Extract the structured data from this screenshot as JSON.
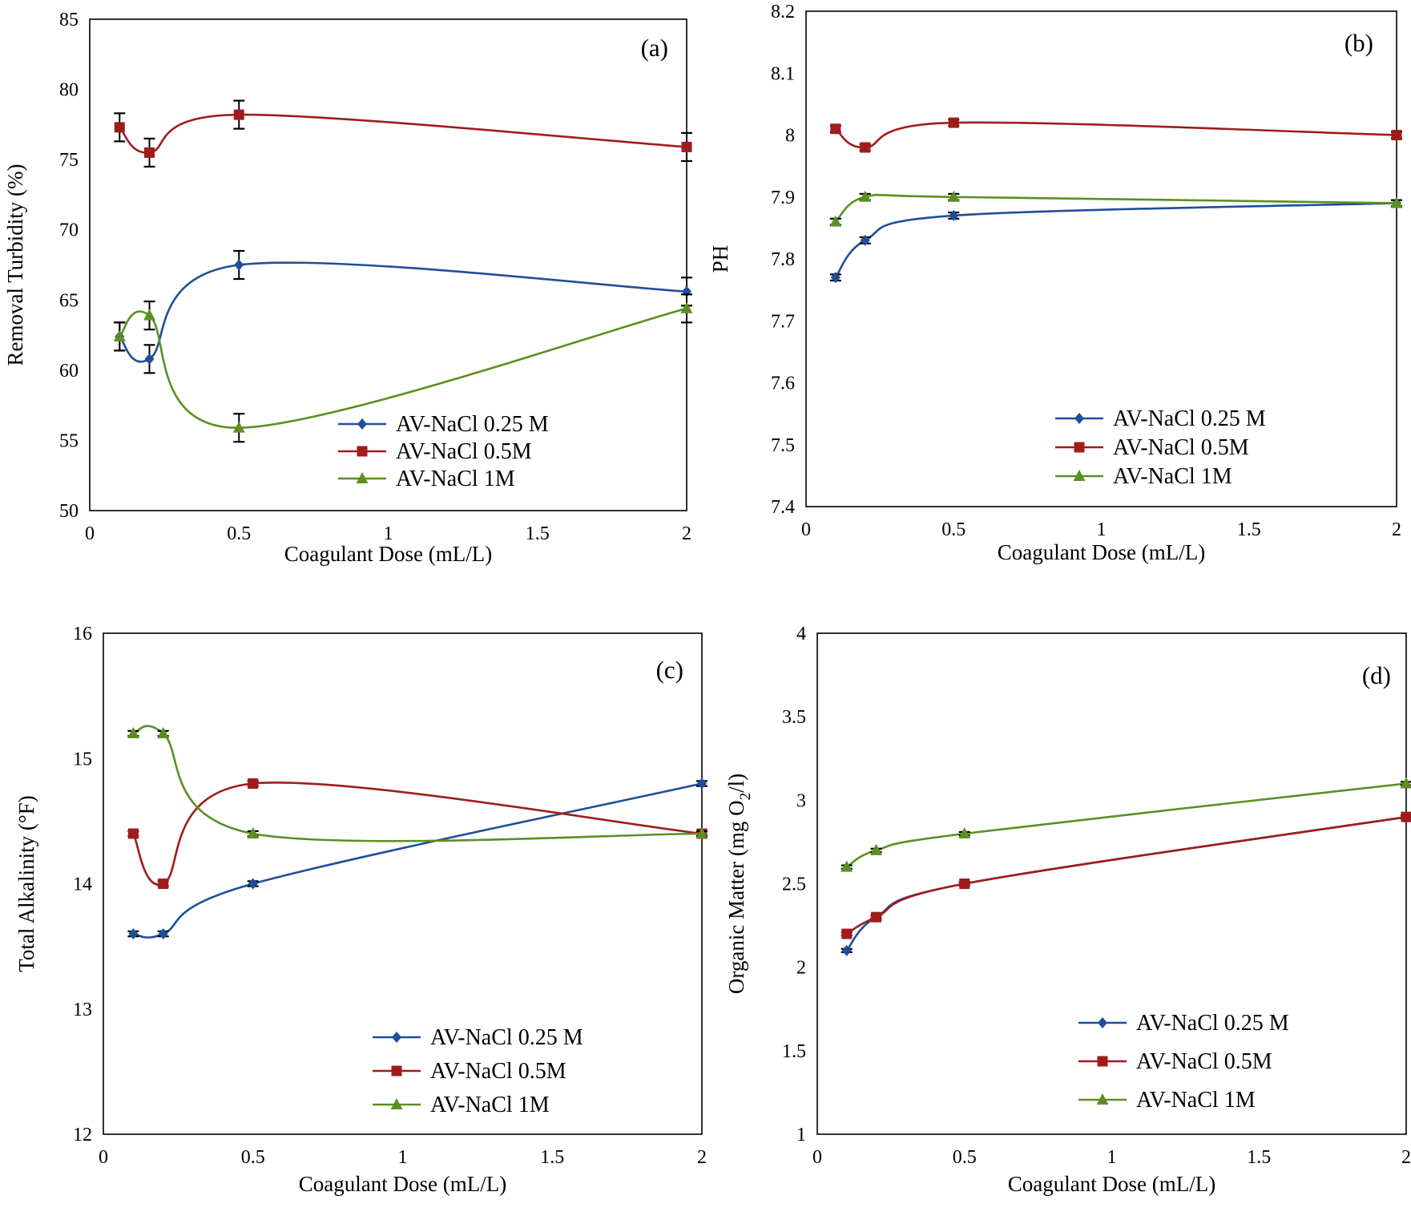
{
  "figure": {
    "x_label": "Coagulant Dose (mL/L)"
  },
  "chart_data": [
    {
      "type": "line",
      "panel": "(a)",
      "xlabel": "Coagulant Dose (mL/L)",
      "ylabel": "Removal Turbidity (%)",
      "xlim": [
        0,
        2
      ],
      "ylim": [
        50,
        85
      ],
      "xticks": [
        0,
        0.5,
        1,
        1.5,
        2
      ],
      "xtick_labels": [
        "0",
        "0.5",
        "1",
        "1.5",
        "2"
      ],
      "yticks": [
        50,
        55,
        60,
        65,
        70,
        75,
        80,
        85
      ],
      "ytick_labels": [
        "50",
        "55",
        "60",
        "65",
        "70",
        "75",
        "80",
        "85"
      ],
      "legend_position": "bottom-right",
      "series": [
        {
          "name": "AV-NaCl 0.25 M",
          "color": "#1f4e9a",
          "marker": "diamond",
          "x": [
            0.1,
            0.2,
            0.5,
            2
          ],
          "y": [
            62.4,
            60.8,
            67.5,
            65.6
          ],
          "error": [
            1,
            1,
            1,
            1
          ]
        },
        {
          "name": "AV-NaCl 0.5M",
          "color": "#a01c1c",
          "marker": "square",
          "x": [
            0.1,
            0.2,
            0.5,
            2
          ],
          "y": [
            77.3,
            75.5,
            78.2,
            75.9
          ],
          "error": [
            1,
            1,
            1,
            1
          ]
        },
        {
          "name": "AV-NaCl 1M",
          "color": "#5b8f22",
          "marker": "triangle",
          "x": [
            0.1,
            0.2,
            0.5,
            2
          ],
          "y": [
            62.4,
            63.9,
            55.9,
            64.4
          ],
          "error": [
            1,
            1,
            1,
            1
          ]
        }
      ]
    },
    {
      "type": "line",
      "panel": "(b)",
      "xlabel": "Coagulant Dose (mL/L)",
      "ylabel": "PH",
      "xlim": [
        0,
        2
      ],
      "ylim": [
        7.4,
        8.2
      ],
      "xticks": [
        0,
        0.5,
        1,
        1.5,
        2
      ],
      "xtick_labels": [
        "0",
        "0.5",
        "1",
        "1.5",
        "2"
      ],
      "yticks": [
        7.4,
        7.5,
        7.6,
        7.7,
        7.8,
        7.9,
        8.0,
        8.1,
        8.2
      ],
      "ytick_labels": [
        "7.4",
        "7.5",
        "7.6",
        "7.7",
        "7.8",
        "7.9",
        "8",
        "8.1",
        "8.2"
      ],
      "legend_position": "bottom-right",
      "series": [
        {
          "name": "AV-NaCl 0.25 M",
          "color": "#1f4e9a",
          "marker": "diamond",
          "x": [
            0.1,
            0.2,
            0.5,
            2
          ],
          "y": [
            7.77,
            7.83,
            7.87,
            7.89
          ],
          "error": [
            0.005,
            0.005,
            0.005,
            0.005
          ]
        },
        {
          "name": "AV-NaCl 0.5M",
          "color": "#a01c1c",
          "marker": "square",
          "x": [
            0.1,
            0.2,
            0.5,
            2
          ],
          "y": [
            8.01,
            7.98,
            8.02,
            8.0
          ],
          "error": [
            0.005,
            0.005,
            0.005,
            0.005
          ]
        },
        {
          "name": "AV-NaCl 1M",
          "color": "#5b8f22",
          "marker": "triangle",
          "x": [
            0.1,
            0.2,
            0.5,
            2
          ],
          "y": [
            7.86,
            7.9,
            7.9,
            7.89
          ],
          "error": [
            0.005,
            0.005,
            0.005,
            0.005
          ]
        }
      ]
    },
    {
      "type": "line",
      "panel": "(c)",
      "xlabel": "Coagulant Dose (mL/L)",
      "ylabel": "Total Alkalinity (°F)",
      "xlim": [
        0,
        2
      ],
      "ylim": [
        12,
        16
      ],
      "xticks": [
        0,
        0.5,
        1,
        1.5,
        2
      ],
      "xtick_labels": [
        "0",
        "0.5",
        "1",
        "1.5",
        "2"
      ],
      "yticks": [
        12,
        13,
        14,
        15,
        16
      ],
      "ytick_labels": [
        "12",
        "13",
        "14",
        "15",
        "16"
      ],
      "legend_position": "bottom-right",
      "series": [
        {
          "name": "AV-NaCl 0.25 M",
          "color": "#1f4e9a",
          "marker": "diamond",
          "x": [
            0.1,
            0.2,
            0.5,
            2
          ],
          "y": [
            13.6,
            13.6,
            14.0,
            14.8
          ],
          "error": [
            0.02,
            0.02,
            0.02,
            0.02
          ]
        },
        {
          "name": "AV-NaCl 0.5M",
          "color": "#a01c1c",
          "marker": "square",
          "x": [
            0.1,
            0.2,
            0.5,
            2
          ],
          "y": [
            14.4,
            14.0,
            14.8,
            14.4
          ],
          "error": [
            0.02,
            0.02,
            0.02,
            0.02
          ]
        },
        {
          "name": "AV-NaCl 1M",
          "color": "#5b8f22",
          "marker": "triangle",
          "x": [
            0.1,
            0.2,
            0.5,
            2
          ],
          "y": [
            15.2,
            15.2,
            14.4,
            14.4
          ],
          "error": [
            0.02,
            0.02,
            0.02,
            0.02
          ]
        }
      ]
    },
    {
      "type": "line",
      "panel": "(d)",
      "xlabel": "Coagulant Dose (mL/L)",
      "ylabel": "Organic Matter (mg  O2/l)",
      "ylabel_prefix": "Organic Matter (mg  O",
      "ylabel_sub": "2",
      "ylabel_suffix": "/l)",
      "xlim": [
        0,
        2
      ],
      "ylim": [
        1,
        4
      ],
      "xticks": [
        0,
        0.5,
        1,
        1.5,
        2
      ],
      "xtick_labels": [
        "0",
        "0.5",
        "1",
        "1.5",
        "2"
      ],
      "yticks": [
        1,
        1.5,
        2,
        2.5,
        3,
        3.5,
        4
      ],
      "ytick_labels": [
        "1",
        "1.5",
        "2",
        "2.5",
        "3",
        "3.5",
        "4"
      ],
      "legend_position": "bottom-right",
      "series": [
        {
          "name": "AV-NaCl 0.25 M",
          "color": "#1f4e9a",
          "marker": "diamond",
          "x": [
            0.1,
            0.2,
            0.5,
            2
          ],
          "y": [
            2.1,
            2.3,
            2.5,
            2.9
          ],
          "error": [
            0.01,
            0.01,
            0.01,
            0.01
          ]
        },
        {
          "name": "AV-NaCl 0.5M",
          "color": "#a01c1c",
          "marker": "square",
          "x": [
            0.1,
            0.2,
            0.5,
            2
          ],
          "y": [
            2.2,
            2.3,
            2.5,
            2.9
          ],
          "error": [
            0.01,
            0.01,
            0.01,
            0.01
          ]
        },
        {
          "name": "AV-NaCl 1M",
          "color": "#5b8f22",
          "marker": "triangle",
          "x": [
            0.1,
            0.2,
            0.5,
            2
          ],
          "y": [
            2.6,
            2.7,
            2.8,
            3.1
          ],
          "error": [
            0.01,
            0.01,
            0.01,
            0.01
          ]
        }
      ]
    }
  ]
}
